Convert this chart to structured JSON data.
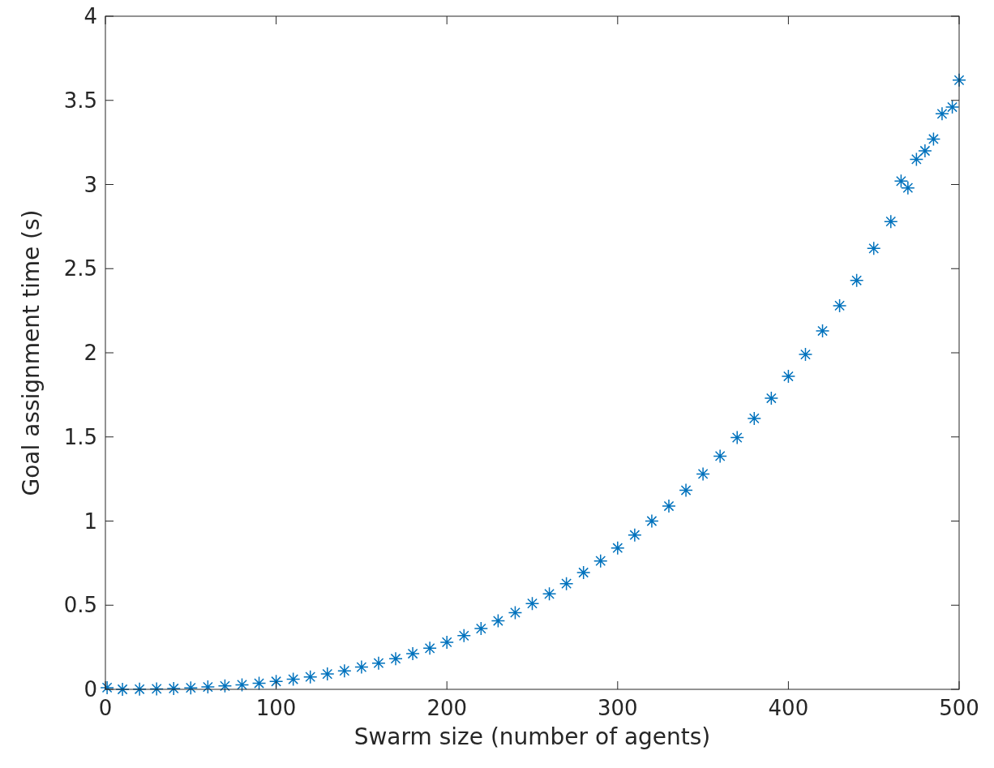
{
  "chart_data": {
    "type": "scatter",
    "xlabel": "Swarm size (number of agents)",
    "ylabel": "Goal assignment time (s)",
    "xlim": [
      0,
      500
    ],
    "ylim": [
      0,
      4
    ],
    "xticks": [
      0,
      100,
      200,
      300,
      400,
      500
    ],
    "yticks": [
      0,
      0.5,
      1,
      1.5,
      2,
      2.5,
      3,
      3.5,
      4
    ],
    "marker": "cross",
    "grid": false,
    "series": [
      {
        "color": "#0072bd",
        "x": [
          1,
          10,
          20,
          30,
          40,
          50,
          60,
          70,
          80,
          90,
          100,
          110,
          120,
          130,
          140,
          150,
          160,
          170,
          180,
          190,
          200,
          210,
          220,
          230,
          240,
          250,
          260,
          270,
          280,
          290,
          300,
          310,
          320,
          330,
          340,
          350,
          360,
          370,
          380,
          390,
          400,
          410,
          420,
          430,
          440,
          450,
          460,
          466,
          470,
          475,
          480,
          485,
          490,
          496,
          500
        ],
        "values": [
          0.01,
          0.0,
          0.001,
          0.003,
          0.005,
          0.009,
          0.014,
          0.02,
          0.027,
          0.036,
          0.047,
          0.06,
          0.074,
          0.091,
          0.11,
          0.132,
          0.156,
          0.182,
          0.212,
          0.244,
          0.28,
          0.319,
          0.361,
          0.407,
          0.456,
          0.51,
          0.567,
          0.628,
          0.694,
          0.763,
          0.84,
          0.917,
          1.0,
          1.089,
          1.183,
          1.28,
          1.386,
          1.496,
          1.61,
          1.73,
          1.86,
          1.99,
          2.13,
          2.28,
          2.43,
          2.62,
          2.78,
          3.02,
          2.98,
          3.15,
          3.2,
          3.27,
          3.42,
          3.46,
          3.62
        ]
      }
    ]
  }
}
